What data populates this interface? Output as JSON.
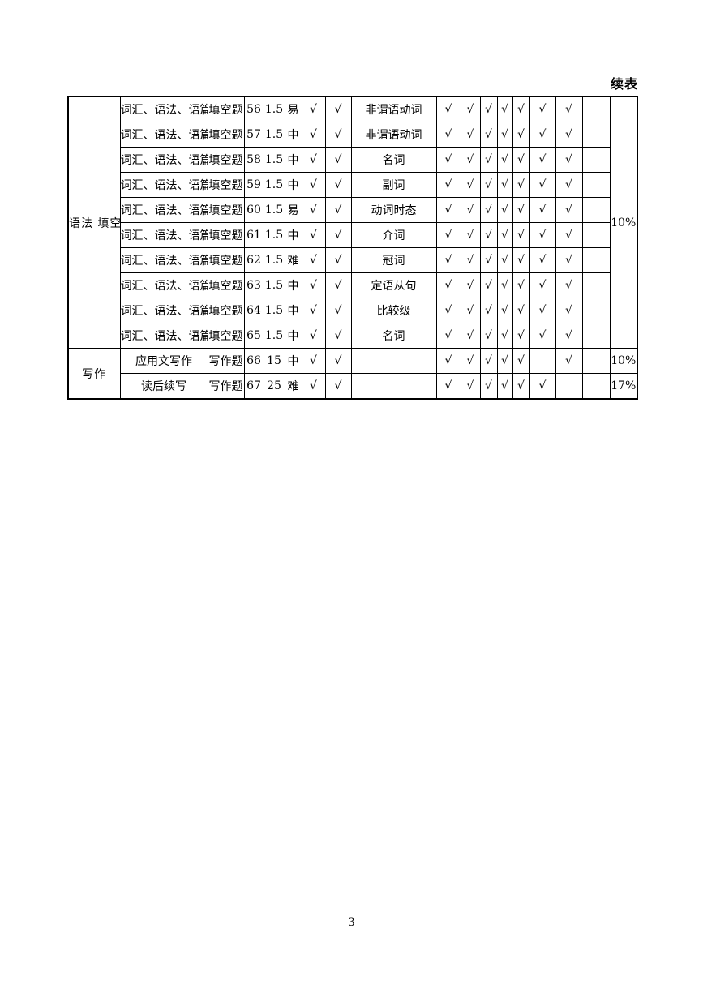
{
  "page": {
    "continued_label": "续表",
    "page_number": "3"
  },
  "table": {
    "check_symbol": "√",
    "groups": [
      {
        "label": "语法填空",
        "percent": "10%"
      },
      {
        "label": "写作"
      }
    ],
    "rows": [
      {
        "group": {
          "label": "语法\n填空",
          "rowspan": 10
        },
        "content": "词汇、语法、语篇",
        "qtype": "填空题",
        "num": "56",
        "score": "1.5",
        "difficulty": "易",
        "check_a": "√",
        "check_b": "√",
        "knowledge": "非谓语动词",
        "checks": [
          "√",
          "√",
          "√",
          "√",
          "√",
          "√",
          "√"
        ],
        "blank": "",
        "pct": {
          "value": "10%",
          "rowspan": 10
        }
      },
      {
        "content": "词汇、语法、语篇",
        "qtype": "填空题",
        "num": "57",
        "score": "1.5",
        "difficulty": "中",
        "check_a": "√",
        "check_b": "√",
        "knowledge": "非谓语动词",
        "checks": [
          "√",
          "√",
          "√",
          "√",
          "√",
          "√",
          "√"
        ],
        "blank": ""
      },
      {
        "content": "词汇、语法、语篇",
        "qtype": "填空题",
        "num": "58",
        "score": "1.5",
        "difficulty": "中",
        "check_a": "√",
        "check_b": "√",
        "knowledge": "名词",
        "checks": [
          "√",
          "√",
          "√",
          "√",
          "√",
          "√",
          "√"
        ],
        "blank": ""
      },
      {
        "content": "词汇、语法、语篇",
        "qtype": "填空题",
        "num": "59",
        "score": "1.5",
        "difficulty": "中",
        "check_a": "√",
        "check_b": "√",
        "knowledge": "副词",
        "checks": [
          "√",
          "√",
          "√",
          "√",
          "√",
          "√",
          "√"
        ],
        "blank": ""
      },
      {
        "content": "词汇、语法、语篇",
        "qtype": "填空题",
        "num": "60",
        "score": "1.5",
        "difficulty": "易",
        "check_a": "√",
        "check_b": "√",
        "knowledge": "动词时态",
        "checks": [
          "√",
          "√",
          "√",
          "√",
          "√",
          "√",
          "√"
        ],
        "blank": ""
      },
      {
        "content": "词汇、语法、语篇",
        "qtype": "填空题",
        "num": "61",
        "score": "1.5",
        "difficulty": "中",
        "check_a": "√",
        "check_b": "√",
        "knowledge": "介词",
        "checks": [
          "√",
          "√",
          "√",
          "√",
          "√",
          "√",
          "√"
        ],
        "blank": ""
      },
      {
        "content": "词汇、语法、语篇",
        "qtype": "填空题",
        "num": "62",
        "score": "1.5",
        "difficulty": "难",
        "check_a": "√",
        "check_b": "√",
        "knowledge": "冠词",
        "checks": [
          "√",
          "√",
          "√",
          "√",
          "√",
          "√",
          "√"
        ],
        "blank": ""
      },
      {
        "content": "词汇、语法、语篇",
        "qtype": "填空题",
        "num": "63",
        "score": "1.5",
        "difficulty": "中",
        "check_a": "√",
        "check_b": "√",
        "knowledge": "定语从句",
        "checks": [
          "√",
          "√",
          "√",
          "√",
          "√",
          "√",
          "√"
        ],
        "blank": ""
      },
      {
        "content": "词汇、语法、语篇",
        "qtype": "填空题",
        "num": "64",
        "score": "1.5",
        "difficulty": "中",
        "check_a": "√",
        "check_b": "√",
        "knowledge": "比较级",
        "checks": [
          "√",
          "√",
          "√",
          "√",
          "√",
          "√",
          "√"
        ],
        "blank": ""
      },
      {
        "content": "词汇、语法、语篇",
        "qtype": "填空题",
        "num": "65",
        "score": "1.5",
        "difficulty": "中",
        "check_a": "√",
        "check_b": "√",
        "knowledge": "名词",
        "checks": [
          "√",
          "√",
          "√",
          "√",
          "√",
          "√",
          "√"
        ],
        "blank": ""
      },
      {
        "group": {
          "label": "写作",
          "rowspan": 2
        },
        "content": "应用文写作",
        "qtype": "写作题",
        "num": "66",
        "score": "15",
        "difficulty": "中",
        "check_a": "√",
        "check_b": "√",
        "knowledge": "",
        "checks": [
          "√",
          "√",
          "√",
          "√",
          "√",
          "",
          "√"
        ],
        "blank": "",
        "pct": {
          "value": "10%",
          "rowspan": 1
        }
      },
      {
        "content": "读后续写",
        "qtype": "写作题",
        "num": "67",
        "score": "25",
        "difficulty": "难",
        "check_a": "√",
        "check_b": "√",
        "knowledge": "",
        "checks": [
          "√",
          "√",
          "√",
          "√",
          "√",
          "√",
          ""
        ],
        "blank": "",
        "pct": {
          "value": "17%",
          "rowspan": 1
        }
      }
    ]
  }
}
